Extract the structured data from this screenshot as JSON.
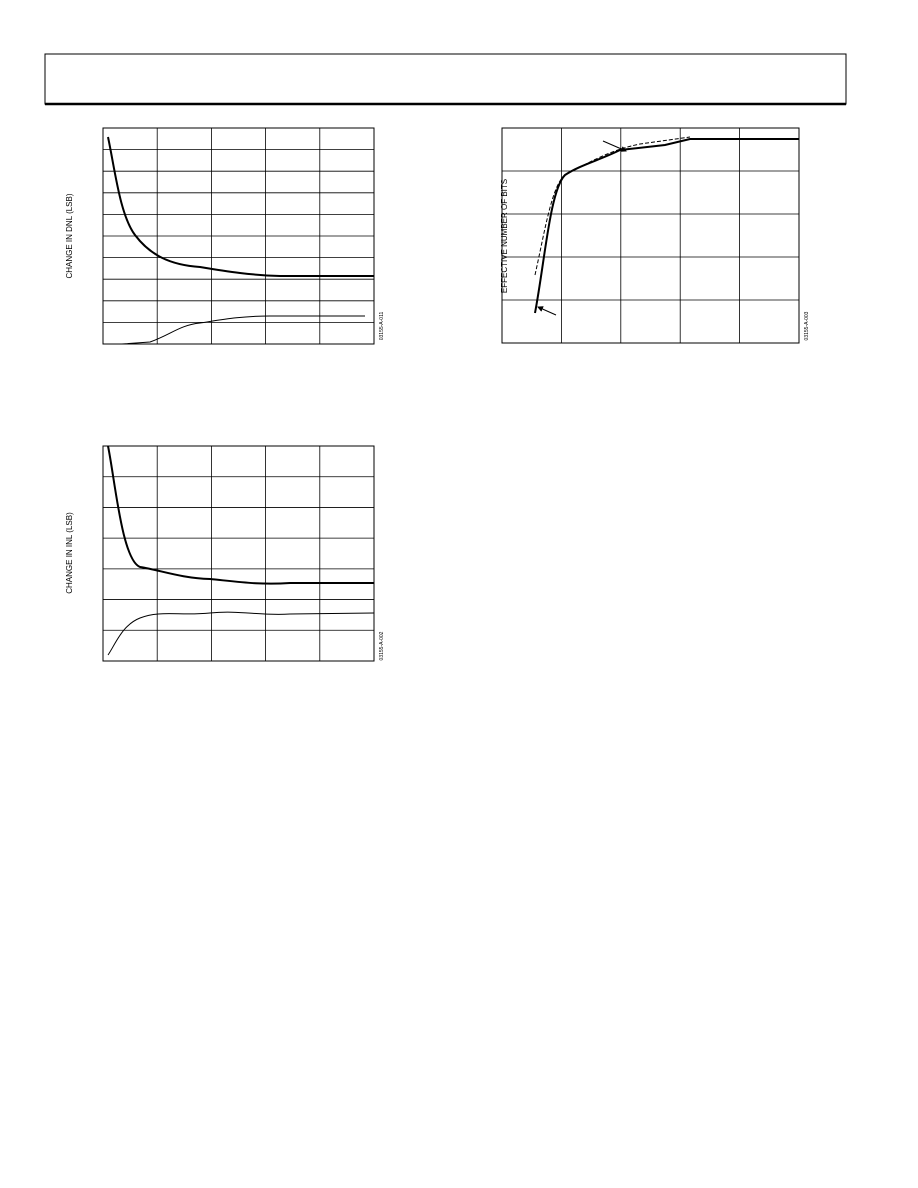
{
  "figures": [
    {
      "y_axis_label": "CHANGE IN DNL (LSB)",
      "figure_code": "03155-A-011"
    },
    {
      "y_axis_label": "EFFECTIVE NUMBER OF BITS",
      "figure_code": "03155-A-003"
    },
    {
      "y_axis_label": "CHANGE IN INL (LSB)",
      "figure_code": "03155-A-002"
    }
  ]
}
